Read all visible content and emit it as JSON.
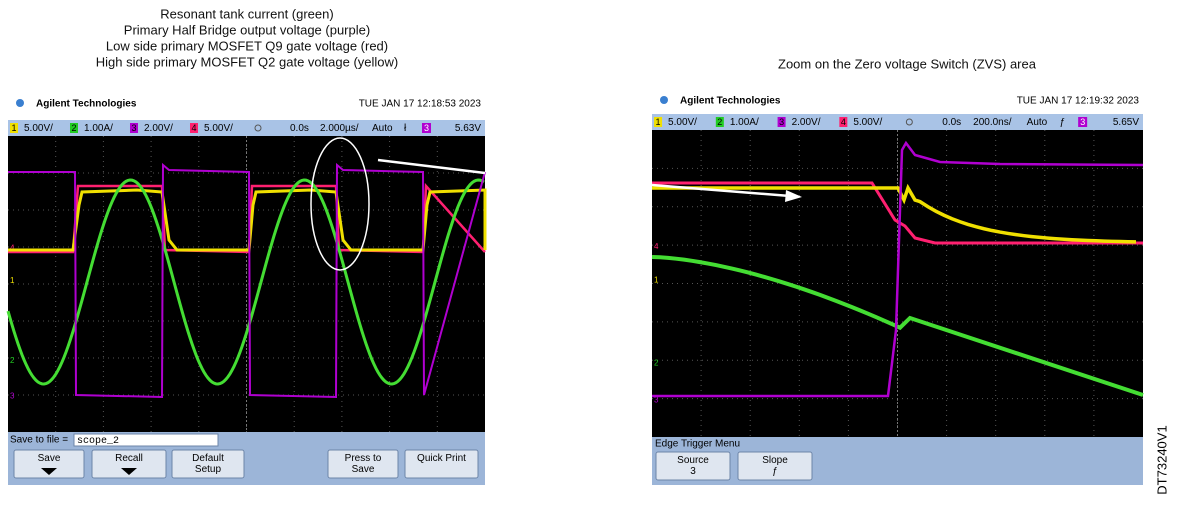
{
  "left": {
    "caption": [
      "Resonant tank current (green)",
      "Primary Half Bridge output voltage (purple)",
      "Low side primary MOSFET Q9 gate voltage (red)",
      "High side primary MOSFET Q2 gate voltage (yellow)"
    ],
    "brand": "Agilent Technologies",
    "timestamp": "TUE JAN 17 12:18:53 2023",
    "channels": [
      {
        "ch": "1",
        "scale": "5.00V/"
      },
      {
        "ch": "2",
        "scale": "1.00A/"
      },
      {
        "ch": "3",
        "scale": "2.00V/"
      },
      {
        "ch": "4",
        "scale": "5.00V/"
      }
    ],
    "delay": "0.0s",
    "timebase": "2.000µs/",
    "mode": "Auto",
    "slope": "ł",
    "trigger_channel": "3",
    "level": "5.63V",
    "markers": [
      "4",
      "1",
      "2",
      "3"
    ],
    "file_label": "Save to file =",
    "file_name": "scope_2",
    "buttons": [
      {
        "lines": [
          "Save"
        ]
      },
      {
        "lines": [
          "Recall"
        ]
      },
      {
        "lines": [
          "Default",
          "Setup"
        ]
      },
      {
        "lines": [
          "Press to",
          "Save"
        ]
      },
      {
        "lines": [
          "Quick Print"
        ]
      }
    ]
  },
  "right": {
    "caption": "Zoom on the Zero voltage Switch (ZVS) area",
    "brand": "Agilent Technologies",
    "timestamp": "TUE JAN 17 12:19:32 2023",
    "channels": [
      {
        "ch": "1",
        "scale": "5.00V/"
      },
      {
        "ch": "2",
        "scale": "1.00A/"
      },
      {
        "ch": "3",
        "scale": "2.00V/"
      },
      {
        "ch": "4",
        "scale": "5.00V/"
      }
    ],
    "delay": "0.0s",
    "timebase": "200.0ns/",
    "mode": "Auto",
    "slope": "ƒ",
    "trigger_channel": "3",
    "level": "5.65V",
    "markers": [
      "4",
      "1",
      "2",
      "3"
    ],
    "menu_title": "Edge Trigger Menu",
    "buttons": [
      {
        "lines": [
          "Source",
          "3"
        ]
      },
      {
        "lines": [
          "Slope",
          "ƒ"
        ]
      }
    ]
  },
  "doc_id": "DT73240V1"
}
